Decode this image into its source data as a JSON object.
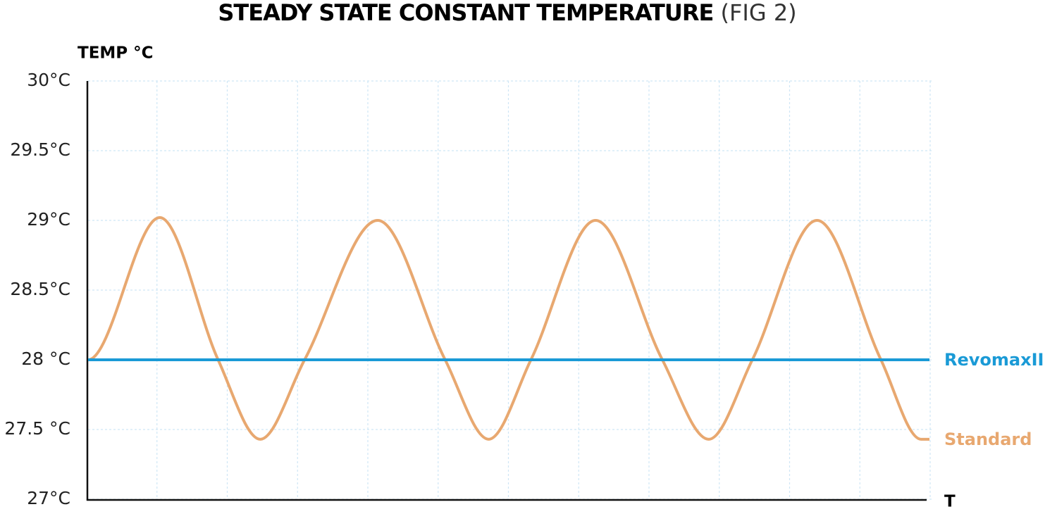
{
  "chart_data": {
    "type": "line",
    "title": "STEADY STATE CONSTANT TEMPERATURE",
    "subtitle": "(FIG 2)",
    "y_label": "TEMP °C",
    "x_label": "T",
    "xlim": [
      0,
      12
    ],
    "ylim": [
      27,
      30
    ],
    "yticks": [
      {
        "value": 30,
        "label": "30°C"
      },
      {
        "value": 29.5,
        "label": "29.5°C"
      },
      {
        "value": 29,
        "label": "29°C"
      },
      {
        "value": 28.5,
        "label": "28.5°C"
      },
      {
        "value": 28,
        "label": "28 °C"
      },
      {
        "value": 27.5,
        "label": "27.5 °C"
      },
      {
        "value": 27,
        "label": "27°C"
      }
    ],
    "grid": true,
    "series": [
      {
        "name": "RevomaxII",
        "color": "#1a9ad6",
        "x": [
          0,
          11.97
        ],
        "values": [
          28,
          28
        ]
      },
      {
        "name": "Standard",
        "color": "#e8a870",
        "x": [
          0,
          1.02,
          1.85,
          2.45,
          3.08,
          4.12,
          5.08,
          5.7,
          6.3,
          7.22,
          8.17,
          8.83,
          9.45,
          10.37,
          11.28,
          11.85,
          11.97
        ],
        "values": [
          28,
          29.02,
          28,
          27.43,
          28,
          29,
          28,
          27.43,
          28,
          29,
          28,
          27.43,
          28,
          29,
          28,
          27.43,
          27.43
        ]
      }
    ]
  }
}
